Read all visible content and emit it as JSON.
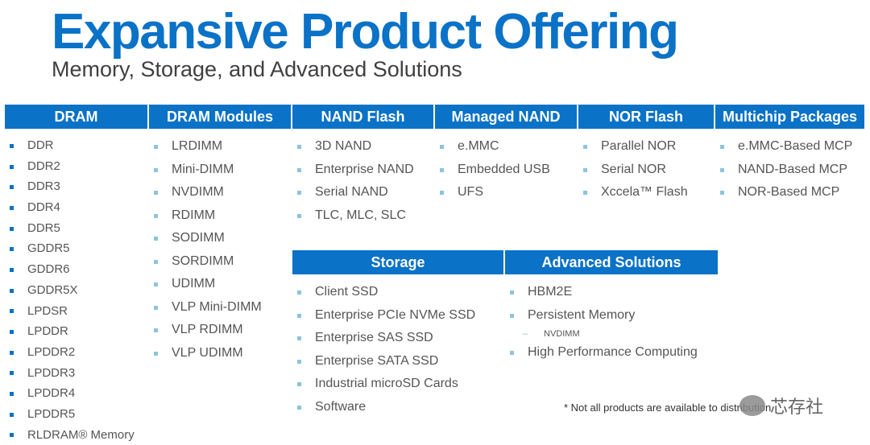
{
  "title": "Expansive Product Offering",
  "subtitle": "Memory, Storage, and Advanced Solutions",
  "categories": {
    "dram": {
      "label": "DRAM",
      "items": [
        "DDR",
        "DDR2",
        "DDR3",
        "DDR4",
        "DDR5",
        "GDDR5",
        "GDDR6",
        "GDDR5X",
        "LPDSR",
        "LPDDR",
        "LPDDR2",
        "LPDDR3",
        "LPDDR4",
        "LPDDR5",
        "RLDRAM® Memory"
      ]
    },
    "dram_modules": {
      "label": "DRAM Modules",
      "items": [
        "LRDIMM",
        "Mini-DIMM",
        "NVDIMM",
        "RDIMM",
        "SODIMM",
        "SORDIMM",
        "UDIMM",
        "VLP Mini-DIMM",
        "VLP RDIMM",
        "VLP UDIMM"
      ]
    },
    "nand_flash": {
      "label": "NAND Flash",
      "items": [
        "3D NAND",
        "Enterprise NAND",
        "Serial NAND",
        "TLC, MLC, SLC"
      ]
    },
    "managed_nand": {
      "label": "Managed NAND",
      "items": [
        "e.MMC",
        "Embedded USB",
        "UFS"
      ]
    },
    "nor_flash": {
      "label": "NOR Flash",
      "items": [
        "Parallel NOR",
        "Serial NOR",
        "Xccela™ Flash"
      ]
    },
    "multichip": {
      "label": "Multichip Packages",
      "items": [
        "e.MMC-Based MCP",
        "NAND-Based MCP",
        "NOR-Based MCP"
      ]
    },
    "storage": {
      "label": "Storage",
      "items": [
        "Client SSD",
        "Enterprise PCIe NVMe SSD",
        "Enterprise SAS SSD",
        "Enterprise SATA SSD",
        "Industrial microSD Cards",
        "Software"
      ]
    },
    "advanced": {
      "label": "Advanced Solutions",
      "items": [
        "HBM2E",
        "Persistent Memory",
        "NVDIMM",
        "High Performance Computing"
      ]
    }
  },
  "footnote": "* Not all products are available to distribution",
  "watermark": "芯存社",
  "colors": {
    "header_bg": "#0a72c7",
    "title": "#0a72c7",
    "bullet_dark": "#0a72c7",
    "bullet_light": "#8cc4e0"
  }
}
